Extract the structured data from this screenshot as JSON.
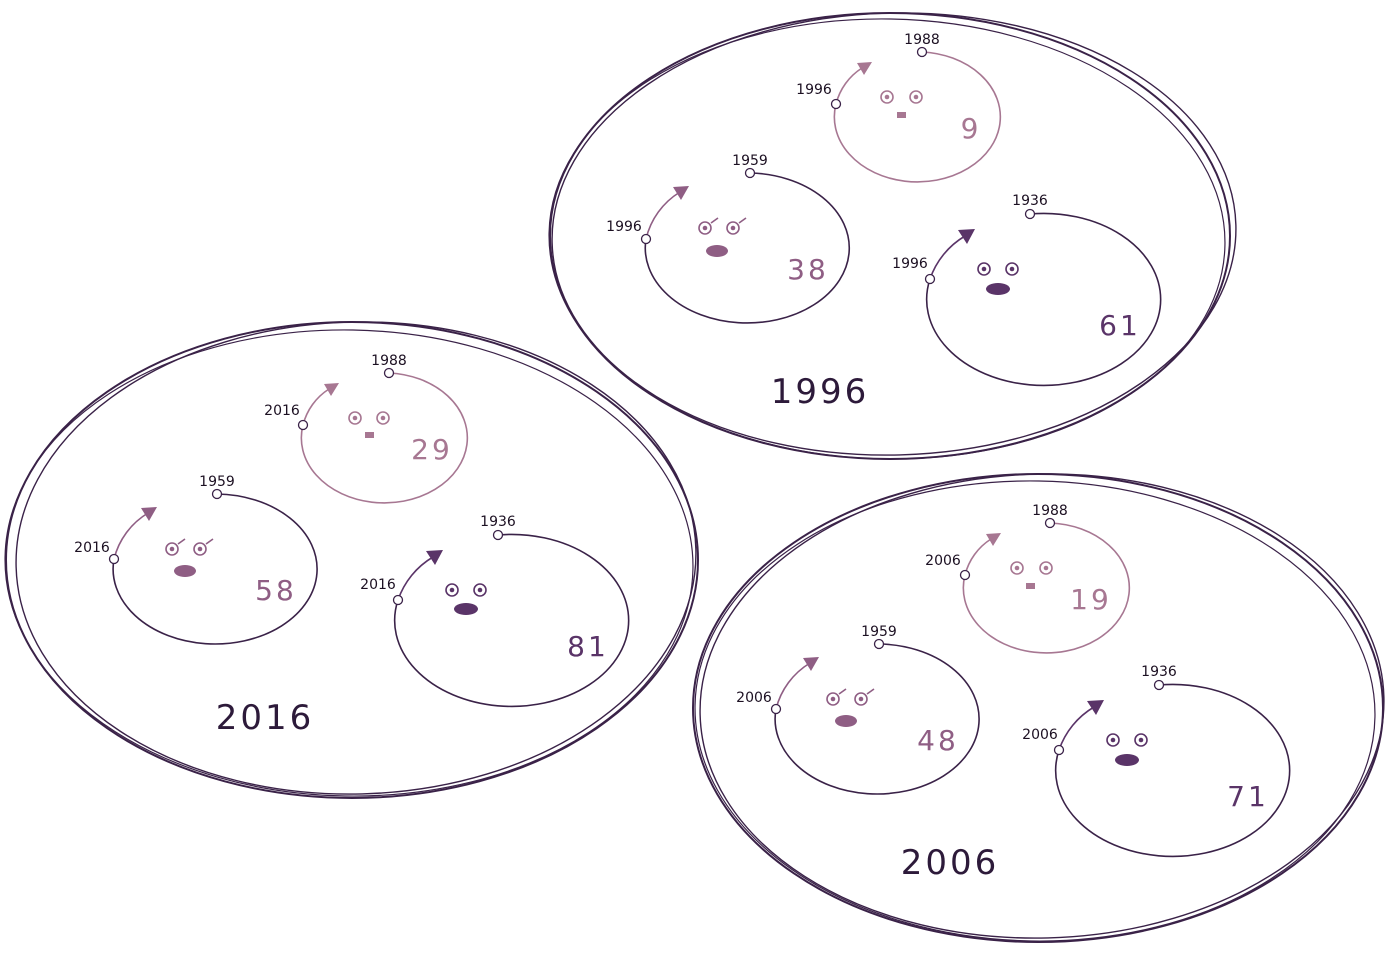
{
  "colors": {
    "outline": "#3a2248",
    "youngest": "#a77792",
    "middle": "#8f5e84",
    "oldest": "#5a3468"
  },
  "groups": [
    {
      "id": "group-1996",
      "title": "1996",
      "people": [
        {
          "birth": "1988",
          "start": "1996",
          "age": "9",
          "tone": "youngest",
          "face": "small"
        },
        {
          "birth": "1959",
          "start": "1996",
          "age": "38",
          "tone": "middle",
          "face": "glasses"
        },
        {
          "birth": "1936",
          "start": "1996",
          "age": "61",
          "tone": "oldest",
          "face": "plain"
        }
      ]
    },
    {
      "id": "group-2016",
      "title": "2016",
      "people": [
        {
          "birth": "1988",
          "start": "2016",
          "age": "29",
          "tone": "youngest",
          "face": "small"
        },
        {
          "birth": "1959",
          "start": "2016",
          "age": "58",
          "tone": "middle",
          "face": "glasses"
        },
        {
          "birth": "1936",
          "start": "2016",
          "age": "81",
          "tone": "oldest",
          "face": "plain"
        }
      ]
    },
    {
      "id": "group-2006",
      "title": "2006",
      "people": [
        {
          "birth": "1988",
          "start": "2006",
          "age": "19",
          "tone": "youngest",
          "face": "small"
        },
        {
          "birth": "1959",
          "start": "2006",
          "age": "48",
          "tone": "middle",
          "face": "glasses"
        },
        {
          "birth": "1936",
          "start": "2006",
          "age": "71",
          "tone": "oldest",
          "face": "plain"
        }
      ]
    }
  ]
}
